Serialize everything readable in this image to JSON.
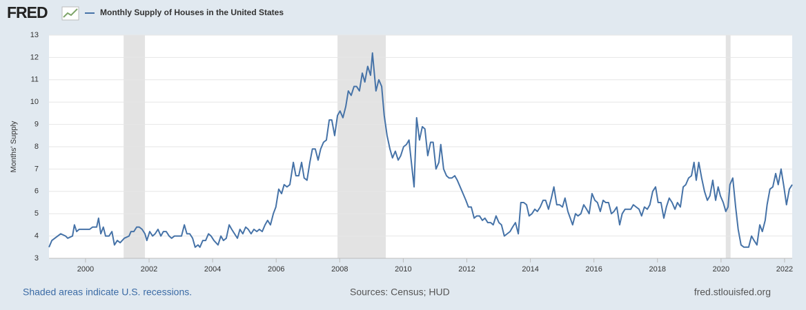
{
  "brand": "FRED",
  "chart_data": {
    "type": "line",
    "y_label": "Months' Supply",
    "x": [
      1998.85,
      1998.94,
      1999.22,
      1999.37,
      1999.44,
      1999.59,
      1999.65,
      1999.72,
      1999.8,
      2000.13,
      2000.22,
      2000.35,
      2000.41,
      2000.48,
      2000.56,
      2000.63,
      2000.74,
      2000.83,
      2000.91,
      2001.0,
      2001.09,
      2001.22,
      2001.37,
      2001.43,
      2001.52,
      2001.61,
      2001.69,
      2001.78,
      2001.87,
      2001.93,
      2002.02,
      2002.11,
      2002.19,
      2002.28,
      2002.37,
      2002.45,
      2002.54,
      2002.63,
      2002.71,
      2002.8,
      2003.02,
      2003.11,
      2003.19,
      2003.28,
      2003.37,
      2003.45,
      2003.54,
      2003.6,
      2003.69,
      2003.78,
      2003.87,
      2003.95,
      2004.04,
      2004.17,
      2004.26,
      2004.34,
      2004.43,
      2004.52,
      2004.6,
      2004.69,
      2004.78,
      2004.86,
      2004.95,
      2005.04,
      2005.12,
      2005.21,
      2005.3,
      2005.39,
      2005.47,
      2005.56,
      2005.65,
      2005.73,
      2005.82,
      2005.91,
      2005.99,
      2006.08,
      2006.17,
      2006.25,
      2006.34,
      2006.43,
      2006.54,
      2006.62,
      2006.71,
      2006.8,
      2006.88,
      2006.97,
      2007.06,
      2007.14,
      2007.23,
      2007.32,
      2007.4,
      2007.49,
      2007.58,
      2007.67,
      2007.75,
      2007.84,
      2007.93,
      2008.01,
      2008.1,
      2008.19,
      2008.27,
      2008.36,
      2008.45,
      2008.53,
      2008.62,
      2008.71,
      2008.79,
      2008.88,
      2008.97,
      2009.03,
      2009.14,
      2009.23,
      2009.32,
      2009.4,
      2009.49,
      2009.58,
      2009.66,
      2009.75,
      2009.84,
      2009.92,
      2010.01,
      2010.1,
      2010.18,
      2010.27,
      2010.34,
      2010.42,
      2010.51,
      2010.6,
      2010.68,
      2010.77,
      2010.86,
      2010.94,
      2011.03,
      2011.12,
      2011.18,
      2011.27,
      2011.36,
      2011.44,
      2011.53,
      2011.62,
      2011.7,
      2011.79,
      2011.88,
      2011.97,
      2012.05,
      2012.14,
      2012.23,
      2012.31,
      2012.4,
      2012.49,
      2012.57,
      2012.66,
      2012.75,
      2012.83,
      2012.92,
      2013.01,
      2013.09,
      2013.18,
      2013.27,
      2013.36,
      2013.44,
      2013.53,
      2013.62,
      2013.7,
      2013.79,
      2013.88,
      2013.96,
      2014.05,
      2014.14,
      2014.22,
      2014.31,
      2014.4,
      2014.48,
      2014.57,
      2014.66,
      2014.74,
      2014.83,
      2014.92,
      2015.01,
      2015.09,
      2015.18,
      2015.33,
      2015.42,
      2015.5,
      2015.59,
      2015.68,
      2015.77,
      2015.85,
      2015.94,
      2016.03,
      2016.11,
      2016.2,
      2016.29,
      2016.37,
      2016.46,
      2016.55,
      2016.63,
      2016.72,
      2016.81,
      2016.89,
      2016.98,
      2017.16,
      2017.24,
      2017.33,
      2017.42,
      2017.5,
      2017.59,
      2017.68,
      2017.76,
      2017.85,
      2017.94,
      2018.02,
      2018.11,
      2018.2,
      2018.28,
      2018.37,
      2018.46,
      2018.55,
      2018.63,
      2018.72,
      2018.81,
      2018.89,
      2018.98,
      2019.07,
      2019.15,
      2019.22,
      2019.3,
      2019.39,
      2019.48,
      2019.57,
      2019.65,
      2019.74,
      2019.83,
      2019.91,
      2019.98,
      2020.07,
      2020.15,
      2020.22,
      2020.28,
      2020.37,
      2020.46,
      2020.54,
      2020.63,
      2020.72,
      2020.87,
      2020.96,
      2021.04,
      2021.13,
      2021.22,
      2021.3,
      2021.39,
      2021.45,
      2021.54,
      2021.63,
      2021.72,
      2021.8,
      2021.89,
      2021.98,
      2022.06,
      2022.15,
      2022.24
    ],
    "series": [
      {
        "name": "Monthly Supply of Houses in the United States",
        "color": "#4572a7",
        "values": [
          3.5,
          3.8,
          4.1,
          4.0,
          3.9,
          4.0,
          4.5,
          4.2,
          4.3,
          4.3,
          4.4,
          4.4,
          4.8,
          4.1,
          4.4,
          4.0,
          4.0,
          4.2,
          3.6,
          3.8,
          3.7,
          3.9,
          4.0,
          4.2,
          4.2,
          4.4,
          4.4,
          4.3,
          4.1,
          3.8,
          4.2,
          4.0,
          4.1,
          4.3,
          4.0,
          4.2,
          4.2,
          4.0,
          3.9,
          4.0,
          4.0,
          4.5,
          4.1,
          4.1,
          3.9,
          3.5,
          3.6,
          3.5,
          3.8,
          3.8,
          4.1,
          4.0,
          3.8,
          3.6,
          4.0,
          3.8,
          3.9,
          4.5,
          4.3,
          4.1,
          3.9,
          4.3,
          4.1,
          4.4,
          4.3,
          4.1,
          4.3,
          4.2,
          4.3,
          4.2,
          4.5,
          4.7,
          4.5,
          5.0,
          5.3,
          6.1,
          5.9,
          6.3,
          6.2,
          6.3,
          7.3,
          6.7,
          6.7,
          7.3,
          6.6,
          6.5,
          7.3,
          7.9,
          7.9,
          7.4,
          7.9,
          8.2,
          8.3,
          9.2,
          9.2,
          8.5,
          9.4,
          9.6,
          9.3,
          9.8,
          10.5,
          10.3,
          10.7,
          10.7,
          10.5,
          11.3,
          10.9,
          11.6,
          11.2,
          12.2,
          10.5,
          11.0,
          10.7,
          9.4,
          8.5,
          7.9,
          7.5,
          7.8,
          7.4,
          7.6,
          8.0,
          8.1,
          8.3,
          7.1,
          6.2,
          9.3,
          8.3,
          8.9,
          8.8,
          7.6,
          8.2,
          8.2,
          7.0,
          7.3,
          8.1,
          7.0,
          6.7,
          6.6,
          6.6,
          6.7,
          6.5,
          6.2,
          5.9,
          5.6,
          5.3,
          5.3,
          4.8,
          4.9,
          4.9,
          4.7,
          4.8,
          4.6,
          4.6,
          4.5,
          4.9,
          4.6,
          4.5,
          4.0,
          4.1,
          4.2,
          4.4,
          4.6,
          4.1,
          5.5,
          5.5,
          5.4,
          4.9,
          5.0,
          5.2,
          5.1,
          5.3,
          5.6,
          5.6,
          5.2,
          5.7,
          6.2,
          5.4,
          5.4,
          5.3,
          5.7,
          5.1,
          4.5,
          5.0,
          4.9,
          5.0,
          5.4,
          5.2,
          5.0,
          5.9,
          5.6,
          5.5,
          5.1,
          5.6,
          5.5,
          5.5,
          5.0,
          5.1,
          5.3,
          4.5,
          5.0,
          5.2,
          5.2,
          5.4,
          5.3,
          5.2,
          4.9,
          5.3,
          5.2,
          5.4,
          6.0,
          6.2,
          5.5,
          5.5,
          4.8,
          5.3,
          5.7,
          5.5,
          5.2,
          5.5,
          5.3,
          6.2,
          6.3,
          6.6,
          6.7,
          7.3,
          6.5,
          7.3,
          6.6,
          6.0,
          5.6,
          5.8,
          6.5,
          5.6,
          6.2,
          5.8,
          5.5,
          5.1,
          5.3,
          6.3,
          6.6,
          5.3,
          4.3,
          3.6,
          3.5,
          3.5,
          4.0,
          3.8,
          3.6,
          4.5,
          4.2,
          4.7,
          5.4,
          6.1,
          6.2,
          6.8,
          6.3,
          7.0,
          6.2,
          5.4,
          6.1,
          6.3
        ]
      }
    ],
    "recessions": [
      [
        2001.2,
        2001.87
      ],
      [
        2007.93,
        2009.45
      ],
      [
        2020.15,
        2020.3
      ]
    ],
    "xlim": [
      1998.85,
      2022.24
    ],
    "xticks": [
      2000,
      2002,
      2004,
      2006,
      2008,
      2010,
      2012,
      2014,
      2016,
      2018,
      2020,
      2022
    ],
    "ylim": [
      3,
      13
    ],
    "yticks": [
      3,
      4,
      5,
      6,
      7,
      8,
      9,
      10,
      11,
      12,
      13
    ],
    "grid": true
  },
  "footer": {
    "note": "Shaded areas indicate U.S. recessions.",
    "sources": "Sources: Census; HUD",
    "site": "fred.stlouisfed.org"
  }
}
